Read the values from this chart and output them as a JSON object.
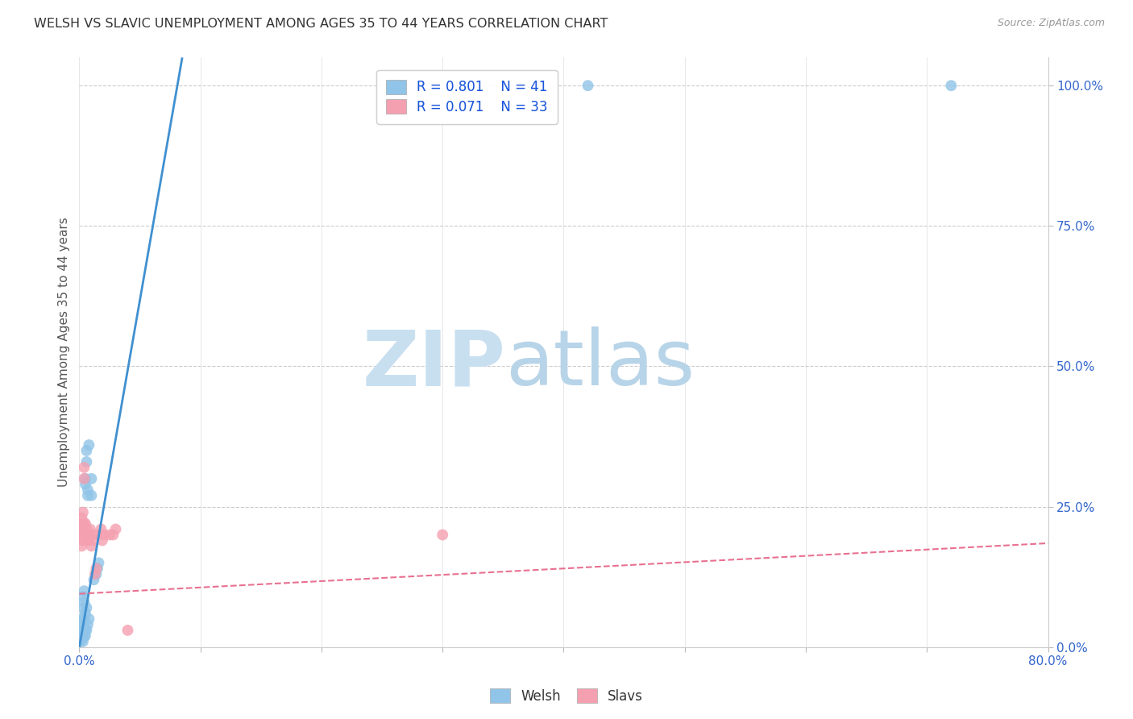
{
  "title": "WELSH VS SLAVIC UNEMPLOYMENT AMONG AGES 35 TO 44 YEARS CORRELATION CHART",
  "source": "Source: ZipAtlas.com",
  "ylabel": "Unemployment Among Ages 35 to 44 years",
  "welsh_R": 0.801,
  "welsh_N": 41,
  "slavs_R": 0.071,
  "slavs_N": 33,
  "welsh_color": "#90c4e8",
  "slavs_color": "#f4a0b0",
  "welsh_line_color": "#4090d0",
  "slavs_line_color": "#e87090",
  "legend_R_color": "#1a56db",
  "watermark_zip_color": "#c8dff0",
  "watermark_atlas_color": "#b8d4e8",
  "background_color": "#ffffff",
  "welsh_scatter_x": [
    0.001,
    0.001,
    0.001,
    0.002,
    0.002,
    0.002,
    0.002,
    0.003,
    0.003,
    0.003,
    0.003,
    0.003,
    0.003,
    0.004,
    0.004,
    0.004,
    0.004,
    0.004,
    0.005,
    0.005,
    0.005,
    0.005,
    0.005,
    0.006,
    0.006,
    0.006,
    0.006,
    0.007,
    0.007,
    0.007,
    0.008,
    0.008,
    0.01,
    0.01,
    0.012,
    0.014,
    0.015,
    0.016,
    0.38,
    0.42,
    0.72
  ],
  "welsh_scatter_y": [
    0.01,
    0.02,
    0.03,
    0.015,
    0.02,
    0.03,
    0.05,
    0.01,
    0.02,
    0.03,
    0.04,
    0.07,
    0.09,
    0.02,
    0.03,
    0.05,
    0.08,
    0.1,
    0.02,
    0.03,
    0.06,
    0.3,
    0.29,
    0.03,
    0.07,
    0.33,
    0.35,
    0.04,
    0.27,
    0.28,
    0.05,
    0.36,
    0.3,
    0.27,
    0.12,
    0.13,
    0.14,
    0.15,
    1.0,
    1.0,
    1.0
  ],
  "slavs_scatter_x": [
    0.001,
    0.001,
    0.002,
    0.002,
    0.002,
    0.003,
    0.003,
    0.003,
    0.004,
    0.004,
    0.004,
    0.004,
    0.005,
    0.005,
    0.006,
    0.006,
    0.007,
    0.008,
    0.009,
    0.01,
    0.011,
    0.012,
    0.013,
    0.014,
    0.015,
    0.018,
    0.019,
    0.02,
    0.025,
    0.028,
    0.03,
    0.04,
    0.3
  ],
  "slavs_scatter_y": [
    0.2,
    0.22,
    0.18,
    0.2,
    0.23,
    0.19,
    0.21,
    0.24,
    0.2,
    0.22,
    0.3,
    0.32,
    0.2,
    0.22,
    0.19,
    0.21,
    0.2,
    0.19,
    0.21,
    0.18,
    0.2,
    0.19,
    0.13,
    0.14,
    0.2,
    0.21,
    0.19,
    0.2,
    0.2,
    0.2,
    0.21,
    0.03,
    0.2
  ],
  "welsh_line_x": [
    0.0,
    0.085
  ],
  "welsh_line_y": [
    0.0,
    1.05
  ],
  "slavs_line_x": [
    0.0,
    0.8
  ],
  "slavs_line_y": [
    0.095,
    0.185
  ],
  "xmin": 0.0,
  "xmax": 0.8,
  "ymin": 0.0,
  "ymax": 1.05
}
